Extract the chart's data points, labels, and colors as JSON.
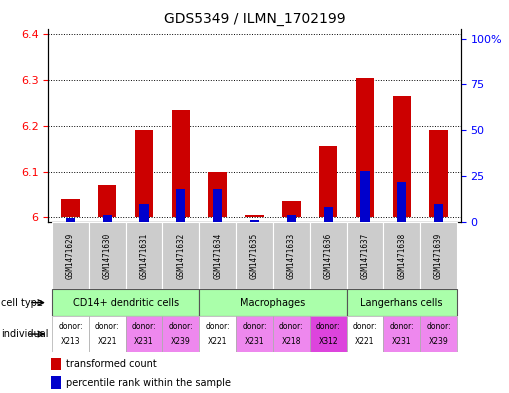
{
  "title": "GDS5349 / ILMN_1702199",
  "samples": [
    "GSM1471629",
    "GSM1471630",
    "GSM1471631",
    "GSM1471632",
    "GSM1471634",
    "GSM1471635",
    "GSM1471633",
    "GSM1471636",
    "GSM1471637",
    "GSM1471638",
    "GSM1471639"
  ],
  "transformed_count": [
    6.04,
    6.07,
    6.19,
    6.235,
    6.1,
    6.005,
    6.035,
    6.155,
    6.305,
    6.265,
    6.19
  ],
  "percentile_rank": [
    2,
    4,
    10,
    18,
    18,
    1,
    4,
    8,
    28,
    22,
    10
  ],
  "ylim_left": [
    5.99,
    6.41
  ],
  "ylim_right": [
    0,
    105
  ],
  "yticks_left": [
    6.0,
    6.1,
    6.2,
    6.3,
    6.4
  ],
  "ytick_labels_left": [
    "6",
    "6.1",
    "6.2",
    "6.3",
    "6.4"
  ],
  "yticks_right": [
    0,
    25,
    50,
    75,
    100
  ],
  "ytick_labels_right": [
    "0",
    "25",
    "50",
    "75",
    "100%"
  ],
  "cell_types": [
    {
      "label": "CD14+ dendritic cells",
      "start": 0,
      "end": 4
    },
    {
      "label": "Macrophages",
      "start": 4,
      "end": 8
    },
    {
      "label": "Langerhans cells",
      "start": 8,
      "end": 11
    }
  ],
  "cell_type_color": "#aaffaa",
  "individuals": [
    {
      "donor": "X213",
      "idx": 0,
      "color": "#ffffff"
    },
    {
      "donor": "X221",
      "idx": 1,
      "color": "#ffffff"
    },
    {
      "donor": "X231",
      "idx": 2,
      "color": "#ee88ee"
    },
    {
      "donor": "X239",
      "idx": 3,
      "color": "#ee88ee"
    },
    {
      "donor": "X221",
      "idx": 4,
      "color": "#ffffff"
    },
    {
      "donor": "X231",
      "idx": 5,
      "color": "#ee88ee"
    },
    {
      "donor": "X218",
      "idx": 6,
      "color": "#ee88ee"
    },
    {
      "donor": "X312",
      "idx": 7,
      "color": "#dd44dd"
    },
    {
      "donor": "X221",
      "idx": 8,
      "color": "#ffffff"
    },
    {
      "donor": "X231",
      "idx": 9,
      "color": "#ee88ee"
    },
    {
      "donor": "X239",
      "idx": 10,
      "color": "#ee88ee"
    }
  ],
  "bar_color_red": "#cc0000",
  "bar_color_blue": "#0000cc",
  "bar_width": 0.5,
  "blue_bar_width": 0.25,
  "sample_bg_color": "#cccccc",
  "baseline": 6.0,
  "fig_width": 5.09,
  "fig_height": 3.93,
  "dpi": 100
}
